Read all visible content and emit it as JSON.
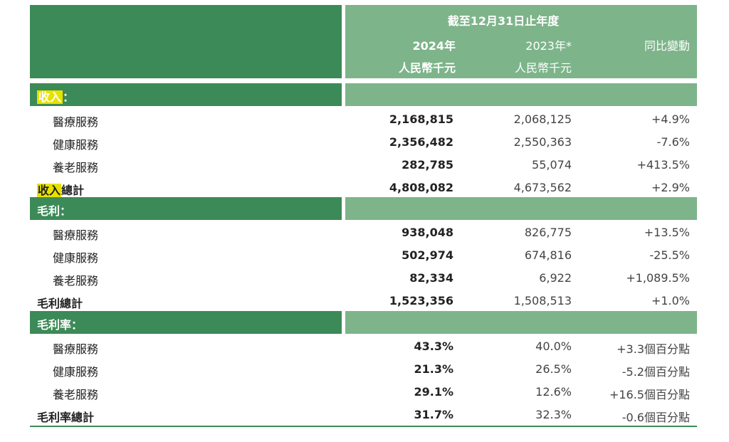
{
  "header": {
    "period": "截至12月31日止年度",
    "col_2024_year": "2024年",
    "col_2024_unit": "人民幣千元",
    "col_2023_year": "2023年*",
    "col_2023_unit": "人民幣千元",
    "col_yoy": "同比變動"
  },
  "revenue": {
    "section_title_hl": "收入",
    "section_title_rest": "：",
    "rows": [
      {
        "label": "醫療服務",
        "v2024": "2,168,815",
        "v2023": "2,068,125",
        "yoy": "+4.9%"
      },
      {
        "label": "健康服務",
        "v2024": "2,356,482",
        "v2023": "2,550,363",
        "yoy": "-7.6%"
      },
      {
        "label": "養老服務",
        "v2024": "282,785",
        "v2023": "55,074",
        "yoy": "+413.5%"
      }
    ],
    "total": {
      "label_hl": "收入",
      "label_rest": "總計",
      "v2024": "4,808,082",
      "v2023": "4,673,562",
      "yoy": "+2.9%"
    }
  },
  "gross_profit": {
    "section_title": "毛利：",
    "rows": [
      {
        "label": "醫療服務",
        "v2024": "938,048",
        "v2023": "826,775",
        "yoy": "+13.5%"
      },
      {
        "label": "健康服務",
        "v2024": "502,974",
        "v2023": "674,816",
        "yoy": "-25.5%"
      },
      {
        "label": "養老服務",
        "v2024": "82,334",
        "v2023": "6,922",
        "yoy": "+1,089.5%"
      }
    ],
    "total": {
      "label": "毛利總計",
      "v2024": "1,523,356",
      "v2023": "1,508,513",
      "yoy": "+1.0%"
    }
  },
  "gross_margin": {
    "section_title": "毛利率：",
    "rows": [
      {
        "label": "醫療服務",
        "v2024": "43.3%",
        "v2023": "40.0%",
        "yoy": "+3.3個百分點"
      },
      {
        "label": "健康服務",
        "v2024": "21.3%",
        "v2023": "26.5%",
        "yoy": "-5.2個百分點"
      },
      {
        "label": "養老服務",
        "v2024": "29.1%",
        "v2023": "12.6%",
        "yoy": "+16.5個百分點"
      }
    ],
    "total": {
      "label": "毛利率總計",
      "v2024": "31.7%",
      "v2023": "32.3%",
      "yoy": "-0.6個百分點"
    }
  },
  "colors": {
    "dark_green": "#3c8a57",
    "light_green": "#7db48a",
    "highlight": "#e8e100"
  }
}
